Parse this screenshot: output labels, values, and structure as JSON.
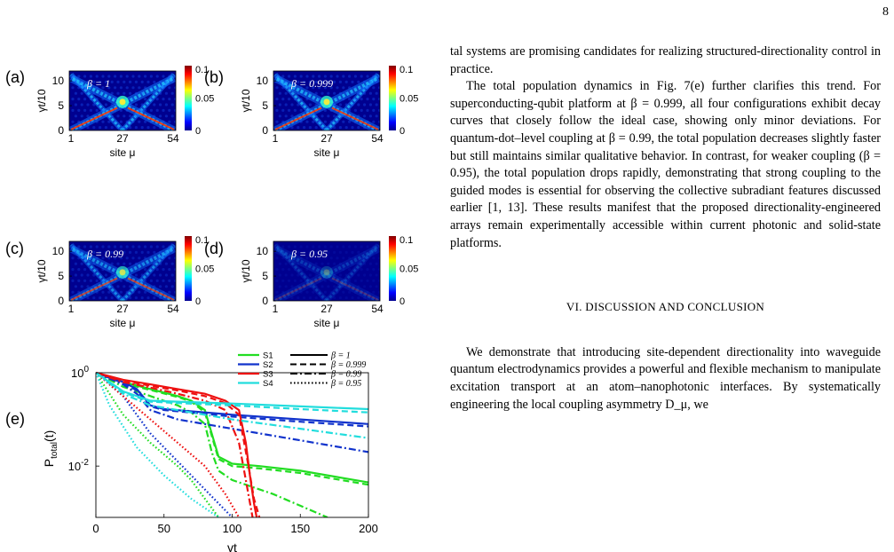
{
  "page_number": "8",
  "panel_labels": [
    "(a)",
    "(b)",
    "(c)",
    "(d)",
    "(e)"
  ],
  "heatmap_panels": [
    {
      "id": "a",
      "beta_label": "β = 1",
      "beta": 1.0,
      "intensity": 1.0
    },
    {
      "id": "b",
      "beta_label": "β = 0.999",
      "beta": 0.999,
      "intensity": 0.96
    },
    {
      "id": "c",
      "beta_label": "β = 0.99",
      "beta": 0.99,
      "intensity": 0.8
    },
    {
      "id": "d",
      "beta_label": "β = 0.95",
      "beta": 0.95,
      "intensity": 0.28
    }
  ],
  "heatmap_axes": {
    "ylabel": "γt/10",
    "xlabel": "site μ",
    "xticks": [
      "1",
      "27",
      "54"
    ],
    "yticks": [
      "0",
      "5",
      "10"
    ],
    "colorbar_ticks": [
      "0.1",
      "0.05",
      "0"
    ],
    "colorbar_range": [
      0,
      0.1
    ]
  },
  "chart_data": {
    "type": "line",
    "panel": "e",
    "xlabel": "γt",
    "ylabel": "P_total(t)",
    "xlim": [
      0,
      200
    ],
    "ylim_log10": [
      -3.1,
      0
    ],
    "y_scale": "log",
    "xticks": [
      "0",
      "50",
      "100",
      "150",
      "200"
    ],
    "yticks": [
      "10^0",
      "10^-2"
    ],
    "legend_colors": [
      {
        "name": "S1",
        "color": "#22dd22"
      },
      {
        "name": "S2",
        "color": "#1133cc"
      },
      {
        "name": "S3",
        "color": "#ee1111"
      },
      {
        "name": "S4",
        "color": "#22dddd"
      }
    ],
    "legend_styles": [
      {
        "name": "β = 1",
        "dash": "solid"
      },
      {
        "name": "β = 0.999",
        "dash": "dashed"
      },
      {
        "name": "β = 0.99",
        "dash": "dashdot"
      },
      {
        "name": "β = 0.95",
        "dash": "dotted"
      }
    ],
    "series": [
      {
        "config": "S1",
        "beta": "1",
        "x": [
          0,
          20,
          40,
          60,
          70,
          80,
          85,
          90,
          100,
          120,
          150,
          200
        ],
        "y_log10": [
          0,
          -0.2,
          -0.35,
          -0.5,
          -0.6,
          -0.8,
          -1.3,
          -1.8,
          -1.95,
          -2.0,
          -2.1,
          -2.35
        ]
      },
      {
        "config": "S1",
        "beta": "0.999",
        "x": [
          0,
          20,
          40,
          60,
          70,
          80,
          85,
          90,
          100,
          120,
          150,
          200
        ],
        "y_log10": [
          0,
          -0.22,
          -0.37,
          -0.52,
          -0.62,
          -0.85,
          -1.35,
          -1.85,
          -2.0,
          -2.05,
          -2.15,
          -2.4
        ]
      },
      {
        "config": "S1",
        "beta": "0.99",
        "x": [
          0,
          20,
          40,
          60,
          70,
          80,
          85,
          90,
          100,
          130,
          170
        ],
        "y_log10": [
          0,
          -0.3,
          -0.5,
          -0.7,
          -0.85,
          -1.1,
          -1.7,
          -2.1,
          -2.3,
          -2.6,
          -3.1
        ]
      },
      {
        "config": "S1",
        "beta": "0.95",
        "x": [
          0,
          20,
          40,
          60,
          70,
          80,
          90
        ],
        "y_log10": [
          0,
          -0.9,
          -1.5,
          -2.0,
          -2.3,
          -2.7,
          -3.1
        ]
      },
      {
        "config": "S2",
        "beta": "1",
        "x": [
          0,
          20,
          30,
          40,
          50,
          80,
          100,
          150,
          200
        ],
        "y_log10": [
          0,
          -0.2,
          -0.35,
          -0.7,
          -0.78,
          -0.85,
          -0.9,
          -1.0,
          -1.1
        ]
      },
      {
        "config": "S2",
        "beta": "0.999",
        "x": [
          0,
          20,
          30,
          40,
          50,
          80,
          100,
          150,
          200
        ],
        "y_log10": [
          0,
          -0.22,
          -0.38,
          -0.72,
          -0.8,
          -0.88,
          -0.94,
          -1.05,
          -1.15
        ]
      },
      {
        "config": "S2",
        "beta": "0.99",
        "x": [
          0,
          20,
          30,
          40,
          60,
          100,
          150,
          200
        ],
        "y_log10": [
          0,
          -0.25,
          -0.45,
          -0.8,
          -1.0,
          -1.2,
          -1.45,
          -1.7
        ]
      },
      {
        "config": "S2",
        "beta": "0.95",
        "x": [
          0,
          20,
          40,
          60,
          80,
          100
        ],
        "y_log10": [
          0,
          -0.5,
          -1.3,
          -1.9,
          -2.5,
          -3.1
        ]
      },
      {
        "config": "S3",
        "beta": "1",
        "x": [
          0,
          20,
          40,
          60,
          80,
          95,
          105,
          110,
          113,
          116,
          118
        ],
        "y_log10": [
          0,
          -0.15,
          -0.25,
          -0.35,
          -0.45,
          -0.6,
          -0.8,
          -1.5,
          -2.2,
          -2.8,
          -3.1
        ]
      },
      {
        "config": "S3",
        "beta": "0.999",
        "x": [
          0,
          20,
          40,
          60,
          80,
          95,
          105,
          112,
          116,
          120
        ],
        "y_log10": [
          0,
          -0.17,
          -0.28,
          -0.38,
          -0.5,
          -0.65,
          -0.9,
          -2.0,
          -2.7,
          -3.1
        ]
      },
      {
        "config": "S3",
        "beta": "0.99",
        "x": [
          0,
          20,
          40,
          60,
          80,
          95,
          105,
          110,
          115
        ],
        "y_log10": [
          0,
          -0.2,
          -0.32,
          -0.45,
          -0.6,
          -0.8,
          -1.5,
          -2.3,
          -3.1
        ]
      },
      {
        "config": "S3",
        "beta": "0.95",
        "x": [
          0,
          20,
          40,
          60,
          80,
          95,
          105
        ],
        "y_log10": [
          0,
          -0.5,
          -1.0,
          -1.5,
          -2.0,
          -2.6,
          -3.1
        ]
      },
      {
        "config": "S4",
        "beta": "1",
        "x": [
          0,
          20,
          40,
          60,
          100,
          150,
          200
        ],
        "y_log10": [
          0,
          -0.4,
          -0.6,
          -0.62,
          -0.66,
          -0.72,
          -0.78
        ]
      },
      {
        "config": "S4",
        "beta": "0.999",
        "x": [
          0,
          20,
          40,
          60,
          100,
          150,
          200
        ],
        "y_log10": [
          0,
          -0.42,
          -0.62,
          -0.65,
          -0.7,
          -0.78,
          -0.85
        ]
      },
      {
        "config": "S4",
        "beta": "0.99",
        "x": [
          0,
          20,
          40,
          60,
          100,
          150,
          200
        ],
        "y_log10": [
          0,
          -0.45,
          -0.7,
          -0.8,
          -1.0,
          -1.2,
          -1.4
        ]
      },
      {
        "config": "S4",
        "beta": "0.95",
        "x": [
          0,
          10,
          30,
          50,
          70,
          90
        ],
        "y_log10": [
          0,
          -0.7,
          -1.6,
          -2.2,
          -2.7,
          -3.1
        ]
      }
    ]
  },
  "text": {
    "p1": "tal systems are promising candidates for realizing structured-directionality control in practice.",
    "p2": "The total population dynamics in Fig. 7(e) further clarifies this trend. For superconducting-qubit platform at β = 0.999, all four configurations exhibit decay curves that closely follow the ideal case, showing only minor deviations. For quantum-dot–level coupling at β = 0.99, the total population decreases slightly faster but still maintains similar qualitative behavior. In contrast, for weaker coupling (β = 0.95), the total population drops rapidly, demonstrating that strong coupling to the guided modes is essential for observing the collective subradiant features discussed earlier [1, 13]. These results manifest that the proposed directionality-engineered arrays remain experimentally accessible within current photonic and solid-state platforms.",
    "section_title": "VI.   DISCUSSION AND CONCLUSION",
    "p3": "We demonstrate that introducing site-dependent directionality into waveguide quantum electrodynamics provides a powerful and flexible mechanism to manipulate excitation transport at an atom–nanophotonic interfaces. By systematically engineering the local coupling asymmetry D_μ, we"
  }
}
